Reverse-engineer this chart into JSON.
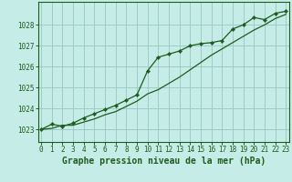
{
  "title": "Graphe pression niveau de la mer (hPa)",
  "bg_color": "#c5ece6",
  "line_color": "#1e5c1e",
  "grid_color": "#9eccc6",
  "x_ticks": [
    0,
    1,
    2,
    3,
    4,
    5,
    6,
    7,
    8,
    9,
    10,
    11,
    12,
    13,
    14,
    15,
    16,
    17,
    18,
    19,
    20,
    21,
    22,
    23
  ],
  "y_ticks": [
    1023,
    1024,
    1025,
    1026,
    1027,
    1028
  ],
  "ylim": [
    1022.4,
    1029.1
  ],
  "xlim": [
    -0.3,
    23.3
  ],
  "line1_x": [
    0,
    1,
    2,
    3,
    4,
    5,
    6,
    7,
    8,
    9,
    10,
    11,
    12,
    13,
    14,
    15,
    16,
    17,
    18,
    19,
    20,
    21,
    22,
    23
  ],
  "line1_y": [
    1023.0,
    1023.25,
    1023.15,
    1023.3,
    1023.55,
    1023.75,
    1023.95,
    1024.15,
    1024.4,
    1024.65,
    1025.8,
    1026.45,
    1026.6,
    1026.75,
    1027.0,
    1027.1,
    1027.15,
    1027.25,
    1027.8,
    1028.0,
    1028.35,
    1028.25,
    1028.55,
    1028.65
  ],
  "line2_x": [
    0,
    1,
    2,
    3,
    4,
    5,
    6,
    7,
    8,
    9,
    10,
    11,
    12,
    13,
    14,
    15,
    16,
    17,
    18,
    19,
    20,
    21,
    22,
    23
  ],
  "line2_y": [
    1023.0,
    1023.05,
    1023.2,
    1023.2,
    1023.35,
    1023.5,
    1023.7,
    1023.85,
    1024.1,
    1024.35,
    1024.7,
    1024.9,
    1025.2,
    1025.5,
    1025.85,
    1026.2,
    1026.55,
    1026.85,
    1027.15,
    1027.45,
    1027.75,
    1028.0,
    1028.3,
    1028.5
  ]
}
